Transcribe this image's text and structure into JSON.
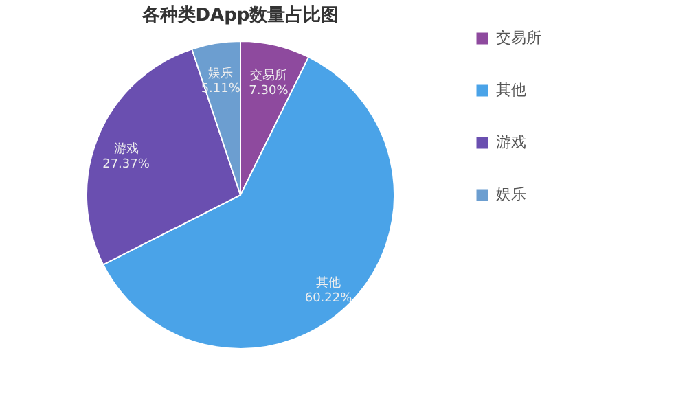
{
  "chart_data": {
    "type": "pie",
    "title": "各种类DApp数量占比图",
    "categories": [
      "交易所",
      "其他",
      "游戏",
      "娱乐"
    ],
    "values": [
      7.3,
      60.22,
      27.37,
      5.11
    ],
    "value_labels": [
      "7.30%",
      "60.22%",
      "27.37%",
      "5.11%"
    ],
    "colors": [
      "#8e4a9e",
      "#4aa3e8",
      "#6a4fb0",
      "#6c9ed0"
    ],
    "legend": "right"
  }
}
